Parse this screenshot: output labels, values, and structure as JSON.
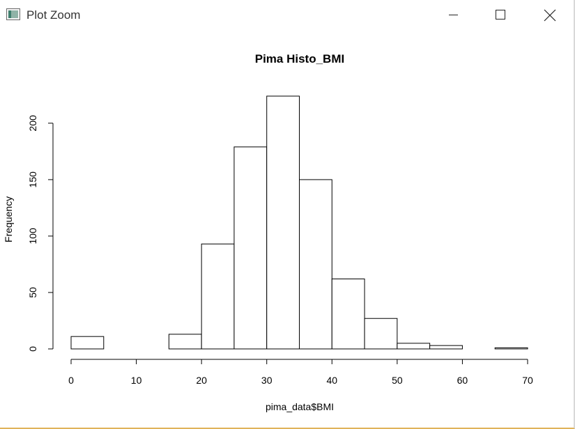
{
  "window": {
    "title": "Plot Zoom",
    "icon": "plot-window-icon",
    "controls": [
      "minimize-icon",
      "maximize-icon",
      "close-icon"
    ]
  },
  "chart_data": {
    "type": "bar",
    "title": "Pima Histo_BMI",
    "xlabel": "pima_data$BMI",
    "ylabel": "Frequency",
    "bins": [
      {
        "start": 0,
        "end": 5,
        "count": 11
      },
      {
        "start": 5,
        "end": 10,
        "count": 0
      },
      {
        "start": 10,
        "end": 15,
        "count": 0
      },
      {
        "start": 15,
        "end": 20,
        "count": 13
      },
      {
        "start": 20,
        "end": 25,
        "count": 93
      },
      {
        "start": 25,
        "end": 30,
        "count": 179
      },
      {
        "start": 30,
        "end": 35,
        "count": 224
      },
      {
        "start": 35,
        "end": 40,
        "count": 150
      },
      {
        "start": 40,
        "end": 45,
        "count": 62
      },
      {
        "start": 45,
        "end": 50,
        "count": 27
      },
      {
        "start": 50,
        "end": 55,
        "count": 5
      },
      {
        "start": 55,
        "end": 60,
        "count": 3
      },
      {
        "start": 60,
        "end": 65,
        "count": 0
      },
      {
        "start": 65,
        "end": 70,
        "count": 1
      }
    ],
    "xlim": [
      0,
      70
    ],
    "ylim": [
      0,
      224
    ],
    "x_ticks": [
      0,
      10,
      20,
      30,
      40,
      50,
      60,
      70
    ],
    "y_ticks": [
      0,
      50,
      100,
      150,
      200
    ],
    "grid": false,
    "legend": "none"
  }
}
